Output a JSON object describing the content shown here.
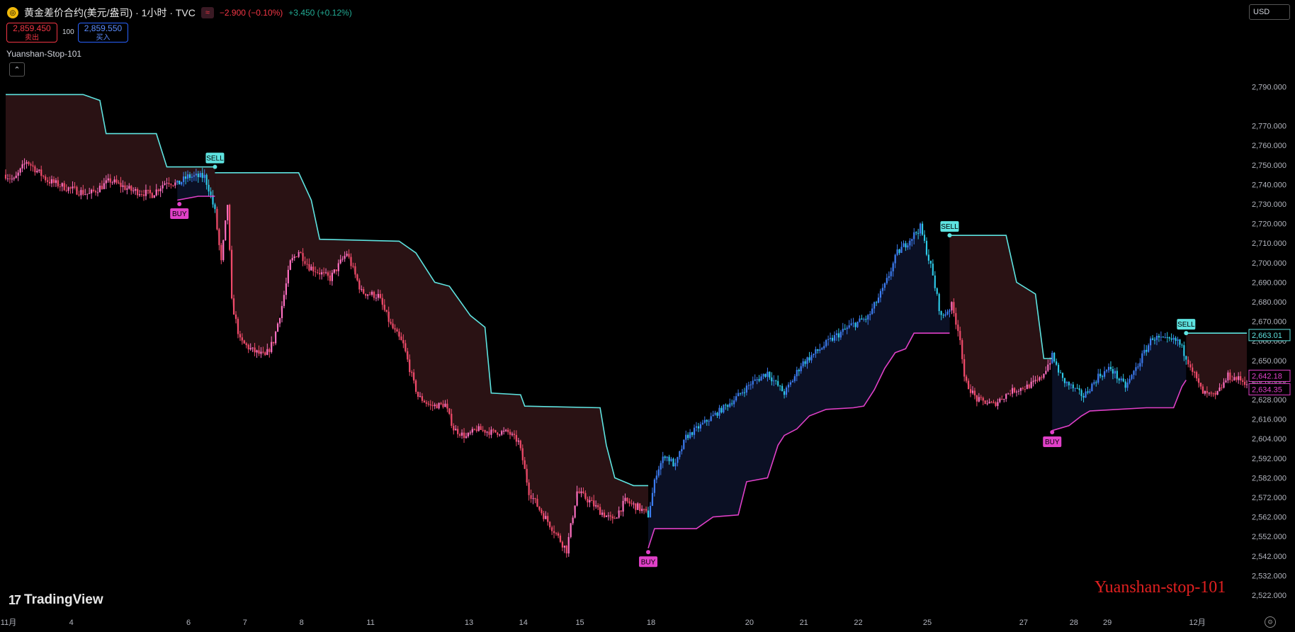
{
  "header": {
    "symbol_logo": "gold-coin-icon",
    "title": "黄金差价合约(美元/盎司) · 1小时 · TVC",
    "change_neg": "−2.900 (−0.10%)",
    "change_pos": "+3.450 (+0.12%)"
  },
  "quotes": {
    "sell_price": "2,859.450",
    "sell_label": "卖出",
    "spread": "100",
    "buy_price": "2,859.550",
    "buy_label": "买入"
  },
  "indicator": {
    "label": "Yuanshan-Stop-101",
    "collapse_icon": "chevron-up-icon"
  },
  "currency": "USD",
  "brand": "TradingView",
  "watermark": "Yuanshan-stop-101",
  "colors": {
    "background": "#000000",
    "stop_upper": "#5ee3e0",
    "stop_lower": "#e040c8",
    "fill_bear": "#2a1214",
    "fill_bull": "#0b1024",
    "candle_bull": "#3c7cf0",
    "candle_bear": "#f04a6a",
    "watermark": "#e02020"
  },
  "chart_data": {
    "type": "line",
    "y_ticks": [
      2522,
      2532,
      2542,
      2552,
      2562,
      2572,
      2582,
      2592,
      2604,
      2616,
      2628,
      2640,
      2650,
      2660,
      2670,
      2680,
      2690,
      2700,
      2710,
      2720,
      2730,
      2740,
      2750,
      2760,
      2770,
      2790
    ],
    "y_tick_labels": [
      "2,522.000",
      "2,532.000",
      "2,542.000",
      "2,552.000",
      "2,562.000",
      "2,572.000",
      "2,582.000",
      "2,592.000",
      "2,604.000",
      "2,616.000",
      "2,628.000",
      "2,640.000",
      "2,650.000",
      "2,660.000",
      "2,670.000",
      "2,680.000",
      "2,690.000",
      "2,700.000",
      "2,710.000",
      "2,720.000",
      "2,730.000",
      "2,740.000",
      "2,750.000",
      "2,760.000",
      "2,770.000",
      "2,790.000"
    ],
    "x_labels": [
      {
        "label": "11月",
        "i": 0
      },
      {
        "label": "4",
        "i": 30
      },
      {
        "label": "6",
        "i": 86
      },
      {
        "label": "7",
        "i": 113
      },
      {
        "label": "8",
        "i": 140
      },
      {
        "label": "11",
        "i": 173
      },
      {
        "label": "13",
        "i": 220
      },
      {
        "label": "14",
        "i": 246
      },
      {
        "label": "15",
        "i": 273
      },
      {
        "label": "18",
        "i": 307
      },
      {
        "label": "20",
        "i": 354
      },
      {
        "label": "21",
        "i": 380
      },
      {
        "label": "22",
        "i": 406
      },
      {
        "label": "25",
        "i": 439
      },
      {
        "label": "27",
        "i": 485
      },
      {
        "label": "28",
        "i": 509
      },
      {
        "label": "29",
        "i": 525
      },
      {
        "label": "12月",
        "i": 568
      }
    ],
    "x_count": 594,
    "price_path": [
      [
        0,
        2745
      ],
      [
        4,
        2742
      ],
      [
        10,
        2752
      ],
      [
        20,
        2742
      ],
      [
        30,
        2738
      ],
      [
        40,
        2735
      ],
      [
        50,
        2742
      ],
      [
        60,
        2737
      ],
      [
        70,
        2735
      ],
      [
        77,
        2742
      ],
      [
        82,
        2740
      ],
      [
        87,
        2744
      ],
      [
        95,
        2744
      ],
      [
        97,
        2738
      ],
      [
        100,
        2726
      ],
      [
        103,
        2700
      ],
      [
        106,
        2730
      ],
      [
        108,
        2680
      ],
      [
        112,
        2660
      ],
      [
        118,
        2655
      ],
      [
        124,
        2652
      ],
      [
        128,
        2660
      ],
      [
        132,
        2678
      ],
      [
        136,
        2700
      ],
      [
        140,
        2706
      ],
      [
        145,
        2698
      ],
      [
        150,
        2695
      ],
      [
        155,
        2692
      ],
      [
        163,
        2705
      ],
      [
        170,
        2685
      ],
      [
        178,
        2683
      ],
      [
        184,
        2668
      ],
      [
        190,
        2658
      ],
      [
        194,
        2642
      ],
      [
        197,
        2630
      ],
      [
        203,
        2624
      ],
      [
        210,
        2625
      ],
      [
        214,
        2610
      ],
      [
        220,
        2605
      ],
      [
        225,
        2610
      ],
      [
        232,
        2608
      ],
      [
        240,
        2608
      ],
      [
        245,
        2602
      ],
      [
        250,
        2575
      ],
      [
        255,
        2566
      ],
      [
        262,
        2555
      ],
      [
        268,
        2545
      ],
      [
        273,
        2575
      ],
      [
        279,
        2570
      ],
      [
        284,
        2565
      ],
      [
        290,
        2560
      ],
      [
        296,
        2570
      ],
      [
        302,
        2567
      ],
      [
        307,
        2563
      ],
      [
        311,
        2585
      ],
      [
        315,
        2594
      ],
      [
        320,
        2588
      ],
      [
        325,
        2605
      ],
      [
        332,
        2612
      ],
      [
        340,
        2620
      ],
      [
        348,
        2628
      ],
      [
        356,
        2638
      ],
      [
        364,
        2644
      ],
      [
        372,
        2632
      ],
      [
        380,
        2648
      ],
      [
        388,
        2655
      ],
      [
        396,
        2662
      ],
      [
        404,
        2668
      ],
      [
        412,
        2672
      ],
      [
        420,
        2688
      ],
      [
        426,
        2705
      ],
      [
        432,
        2712
      ],
      [
        437,
        2718
      ],
      [
        442,
        2698
      ],
      [
        447,
        2672
      ],
      [
        452,
        2678
      ],
      [
        456,
        2662
      ],
      [
        458,
        2640
      ],
      [
        464,
        2628
      ],
      [
        472,
        2625
      ],
      [
        480,
        2633
      ],
      [
        488,
        2636
      ],
      [
        494,
        2640
      ],
      [
        500,
        2652
      ],
      [
        505,
        2640
      ],
      [
        510,
        2635
      ],
      [
        515,
        2630
      ],
      [
        522,
        2642
      ],
      [
        528,
        2646
      ],
      [
        535,
        2636
      ],
      [
        541,
        2648
      ],
      [
        548,
        2662
      ],
      [
        554,
        2660
      ],
      [
        560,
        2660
      ],
      [
        566,
        2648
      ],
      [
        572,
        2632
      ],
      [
        578,
        2630
      ],
      [
        584,
        2642
      ],
      [
        590,
        2640
      ],
      [
        593,
        2638
      ]
    ],
    "stop_segments": [
      {
        "side": "upper",
        "points": [
          [
            0,
            2786
          ],
          [
            37,
            2786
          ],
          [
            45,
            2783
          ],
          [
            48,
            2766
          ],
          [
            72,
            2766
          ],
          [
            77,
            2749
          ],
          [
            95,
            2749
          ],
          [
            100,
            2749
          ]
        ]
      },
      {
        "side": "lower",
        "points": [
          [
            82,
            2732
          ],
          [
            92,
            2734
          ],
          [
            100,
            2734
          ]
        ]
      },
      {
        "side": "upper",
        "points": [
          [
            100,
            2746
          ],
          [
            140,
            2746
          ],
          [
            146,
            2732
          ],
          [
            150,
            2712
          ],
          [
            188,
            2711
          ],
          [
            196,
            2705
          ],
          [
            205,
            2690
          ],
          [
            212,
            2688
          ],
          [
            222,
            2673
          ],
          [
            229,
            2667
          ],
          [
            232,
            2632
          ],
          [
            246,
            2631
          ],
          [
            248,
            2624
          ],
          [
            284,
            2623
          ],
          [
            287,
            2600
          ],
          [
            291,
            2582
          ],
          [
            300,
            2578
          ],
          [
            307,
            2578
          ]
        ]
      },
      {
        "side": "lower",
        "points": [
          [
            307,
            2546
          ],
          [
            310,
            2556
          ],
          [
            330,
            2556
          ],
          [
            338,
            2562
          ],
          [
            350,
            2563
          ],
          [
            354,
            2580
          ],
          [
            364,
            2582
          ],
          [
            369,
            2600
          ],
          [
            372,
            2606
          ],
          [
            378,
            2610
          ],
          [
            384,
            2618
          ],
          [
            392,
            2622
          ],
          [
            405,
            2623
          ],
          [
            410,
            2624
          ],
          [
            415,
            2634
          ],
          [
            420,
            2646
          ],
          [
            425,
            2654
          ],
          [
            430,
            2656
          ],
          [
            434,
            2664
          ],
          [
            447,
            2664
          ],
          [
            451,
            2664
          ]
        ]
      },
      {
        "side": "upper",
        "points": [
          [
            451,
            2714
          ],
          [
            478,
            2714
          ],
          [
            483,
            2690
          ],
          [
            492,
            2684
          ],
          [
            496,
            2651
          ],
          [
            500,
            2651
          ]
        ]
      },
      {
        "side": "lower",
        "points": [
          [
            500,
            2609
          ],
          [
            508,
            2612
          ],
          [
            514,
            2618
          ],
          [
            518,
            2621
          ],
          [
            545,
            2623
          ],
          [
            558,
            2623
          ],
          [
            562,
            2636
          ],
          [
            564,
            2640
          ]
        ]
      },
      {
        "side": "upper",
        "points": [
          [
            564,
            2664
          ],
          [
            593,
            2664
          ]
        ]
      }
    ],
    "signals": [
      {
        "label": "SELL",
        "i": 100,
        "price": 2749,
        "type": "sell"
      },
      {
        "label": "BUY",
        "i": 83,
        "price": 2730,
        "type": "buy"
      },
      {
        "label": "BUY",
        "i": 307,
        "price": 2544,
        "type": "buy"
      },
      {
        "label": "SELL",
        "i": 451,
        "price": 2714,
        "type": "sell"
      },
      {
        "label": "BUY",
        "i": 500,
        "price": 2608,
        "type": "buy"
      },
      {
        "label": "SELL",
        "i": 564,
        "price": 2664,
        "type": "sell"
      }
    ],
    "price_tags": [
      {
        "label": "2,663.01",
        "price": 2663.01,
        "color": "#5ee3e0"
      },
      {
        "label": "2,642.18",
        "price": 2642.18,
        "color": "#e040c8"
      },
      {
        "label": "2,634.35",
        "price": 2634.35,
        "color": "#e040c8"
      }
    ]
  }
}
